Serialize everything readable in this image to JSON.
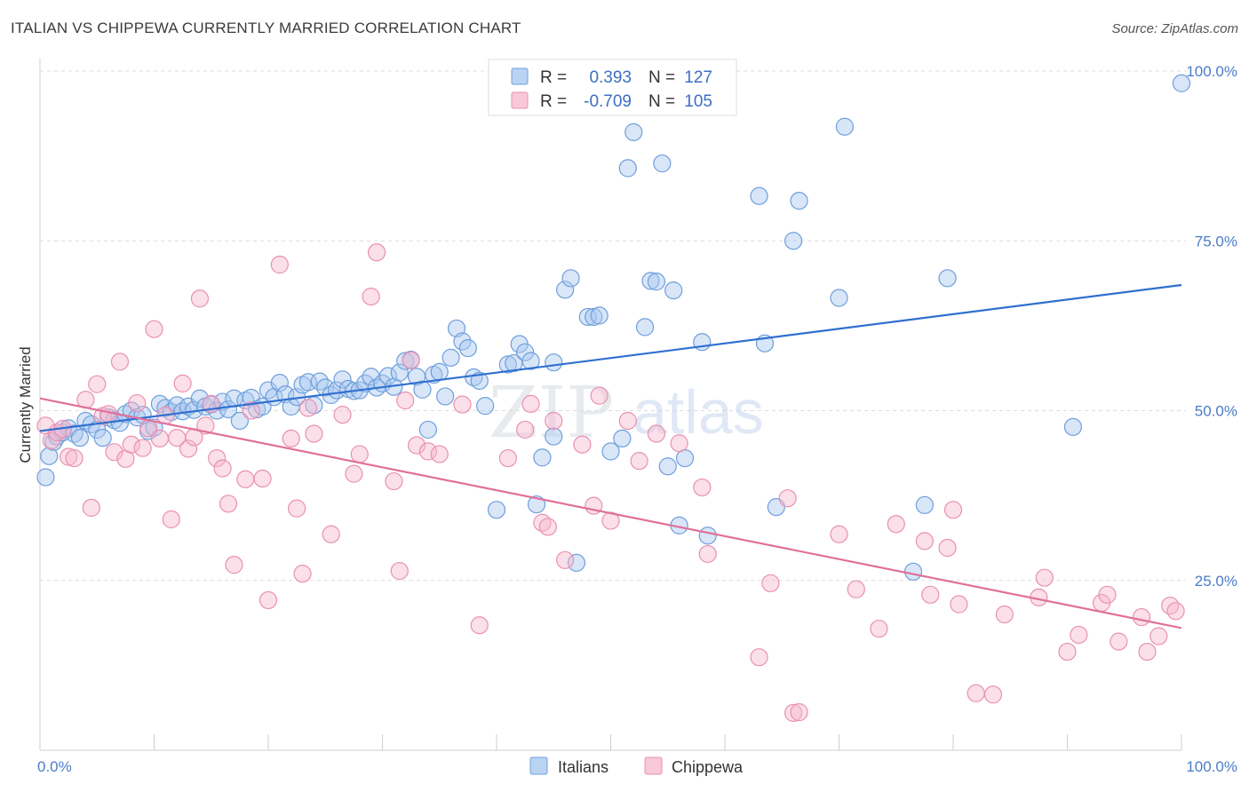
{
  "header": {
    "title": "ITALIAN VS CHIPPEWA CURRENTLY MARRIED CORRELATION CHART",
    "source": "Source: ZipAtlas.com"
  },
  "watermark": {
    "zip": "ZIP",
    "atlas": "atlas"
  },
  "legend": {
    "r_label": "R =",
    "n_label": "N =",
    "rows": [
      {
        "r": "0.393",
        "n": "127"
      },
      {
        "r": "-0.709",
        "n": "105"
      }
    ]
  },
  "bottom_legend": {
    "italians": "Italians",
    "chippewa": "Chippewa"
  },
  "colors": {
    "italians_fill": "#a9c8f0",
    "italians_stroke": "#6f9fdc",
    "italians_line": "#2f6fd0",
    "chippewa_fill": "#f6b9ce",
    "chippewa_stroke": "#e991b0",
    "chippewa_line": "#e0709a",
    "grid": "#dddddd",
    "tick_text": "#4a7cc9"
  },
  "chart_data": {
    "type": "scatter",
    "title": "ITALIAN VS CHIPPEWA CURRENTLY MARRIED CORRELATION CHART",
    "xlabel": "",
    "ylabel": "Currently Married",
    "xlim": [
      0,
      100
    ],
    "ylim": [
      0,
      100
    ],
    "x_tick_labels": [
      "0.0%",
      "100.0%"
    ],
    "y_ticks": [
      25,
      50,
      75,
      100
    ],
    "y_tick_labels": [
      "25.0%",
      "50.0%",
      "75.0%",
      "100.0%"
    ],
    "grid": true,
    "series": [
      {
        "name": "Italians",
        "r": 0.393,
        "n": 127,
        "trend": {
          "x": [
            0,
            100
          ],
          "y": [
            47.0,
            68.5
          ]
        },
        "points": [
          [
            0.5,
            40.2
          ],
          [
            0.8,
            43.3
          ],
          [
            1.2,
            45.4
          ],
          [
            1.5,
            46.2
          ],
          [
            2.0,
            46.8
          ],
          [
            2.5,
            47.4
          ],
          [
            3.0,
            46.6
          ],
          [
            3.5,
            46.0
          ],
          [
            4.0,
            48.5
          ],
          [
            4.5,
            48.0
          ],
          [
            5.0,
            47.2
          ],
          [
            5.5,
            46.0
          ],
          [
            6.0,
            49.0
          ],
          [
            6.5,
            48.6
          ],
          [
            7.0,
            48.2
          ],
          [
            7.5,
            49.5
          ],
          [
            8.0,
            50.0
          ],
          [
            8.5,
            49.0
          ],
          [
            9.0,
            49.4
          ],
          [
            9.5,
            47.0
          ],
          [
            10.0,
            47.5
          ],
          [
            10.5,
            51.0
          ],
          [
            11.0,
            50.4
          ],
          [
            11.5,
            49.8
          ],
          [
            12.0,
            50.8
          ],
          [
            12.5,
            49.9
          ],
          [
            13.0,
            50.6
          ],
          [
            13.5,
            50.1
          ],
          [
            14.0,
            51.8
          ],
          [
            14.5,
            50.6
          ],
          [
            15.0,
            50.9
          ],
          [
            15.5,
            50.0
          ],
          [
            16.0,
            51.3
          ],
          [
            16.5,
            50.2
          ],
          [
            17.0,
            51.8
          ],
          [
            17.5,
            48.5
          ],
          [
            18.0,
            51.5
          ],
          [
            18.5,
            51.9
          ],
          [
            19.0,
            50.2
          ],
          [
            19.5,
            50.6
          ],
          [
            20.0,
            53.0
          ],
          [
            20.5,
            52.0
          ],
          [
            21.0,
            54.1
          ],
          [
            21.5,
            52.4
          ],
          [
            22.0,
            50.6
          ],
          [
            22.5,
            52.0
          ],
          [
            23.0,
            53.8
          ],
          [
            23.5,
            54.2
          ],
          [
            24.0,
            50.8
          ],
          [
            24.5,
            54.3
          ],
          [
            25.0,
            53.4
          ],
          [
            25.5,
            52.3
          ],
          [
            26.0,
            53.0
          ],
          [
            26.5,
            54.6
          ],
          [
            27.0,
            53.2
          ],
          [
            27.5,
            52.9
          ],
          [
            28.0,
            53.0
          ],
          [
            28.5,
            54.0
          ],
          [
            29.0,
            55.0
          ],
          [
            29.5,
            53.4
          ],
          [
            30.0,
            54.0
          ],
          [
            30.5,
            55.1
          ],
          [
            31.0,
            53.5
          ],
          [
            31.5,
            55.6
          ],
          [
            32.0,
            57.3
          ],
          [
            32.5,
            57.5
          ],
          [
            33.0,
            55.0
          ],
          [
            33.5,
            53.1
          ],
          [
            34.0,
            47.2
          ],
          [
            34.5,
            55.3
          ],
          [
            35.0,
            55.7
          ],
          [
            35.5,
            52.1
          ],
          [
            36.0,
            57.8
          ],
          [
            36.5,
            62.1
          ],
          [
            37.0,
            60.2
          ],
          [
            37.5,
            59.2
          ],
          [
            38.0,
            54.9
          ],
          [
            38.5,
            54.4
          ],
          [
            39.0,
            50.7
          ],
          [
            40.0,
            35.4
          ],
          [
            41.0,
            56.8
          ],
          [
            41.5,
            57.0
          ],
          [
            42.0,
            59.8
          ],
          [
            42.5,
            58.6
          ],
          [
            43.0,
            57.3
          ],
          [
            43.5,
            36.2
          ],
          [
            44.0,
            43.1
          ],
          [
            45.0,
            46.2
          ],
          [
            45.0,
            57.1
          ],
          [
            46.0,
            67.8
          ],
          [
            46.5,
            69.5
          ],
          [
            47.0,
            27.6
          ],
          [
            48.0,
            63.8
          ],
          [
            48.5,
            63.8
          ],
          [
            49.0,
            64.0
          ],
          [
            50.0,
            44.0
          ],
          [
            51.0,
            45.9
          ],
          [
            52.0,
            91.0
          ],
          [
            51.5,
            85.7
          ],
          [
            53.0,
            62.3
          ],
          [
            53.5,
            69.1
          ],
          [
            54.0,
            69.0
          ],
          [
            54.5,
            86.4
          ],
          [
            55.0,
            41.8
          ],
          [
            55.5,
            67.7
          ],
          [
            56.0,
            33.1
          ],
          [
            56.5,
            43.0
          ],
          [
            58.0,
            60.1
          ],
          [
            58.5,
            31.6
          ],
          [
            63.0,
            81.6
          ],
          [
            63.5,
            59.9
          ],
          [
            64.5,
            35.8
          ],
          [
            66.0,
            75.0
          ],
          [
            66.5,
            80.9
          ],
          [
            70.0,
            66.6
          ],
          [
            70.5,
            91.8
          ],
          [
            76.5,
            26.3
          ],
          [
            77.5,
            36.1
          ],
          [
            79.5,
            69.5
          ],
          [
            90.5,
            47.6
          ],
          [
            100.0,
            98.2
          ]
        ]
      },
      {
        "name": "Chippewa",
        "r": -0.709,
        "n": 105,
        "trend": {
          "x": [
            0,
            100
          ],
          "y": [
            51.8,
            18.0
          ]
        },
        "points": [
          [
            0.5,
            47.8
          ],
          [
            1.0,
            45.6
          ],
          [
            1.5,
            46.8
          ],
          [
            2.0,
            47.3
          ],
          [
            2.5,
            43.2
          ],
          [
            3.0,
            43.0
          ],
          [
            4.0,
            51.6
          ],
          [
            4.5,
            35.7
          ],
          [
            5.0,
            53.9
          ],
          [
            5.5,
            49.2
          ],
          [
            6.0,
            49.5
          ],
          [
            6.5,
            43.9
          ],
          [
            7.0,
            57.2
          ],
          [
            7.5,
            42.9
          ],
          [
            8.0,
            45.0
          ],
          [
            8.5,
            51.1
          ],
          [
            9.0,
            44.5
          ],
          [
            9.5,
            47.4
          ],
          [
            10.0,
            62.0
          ],
          [
            10.5,
            45.9
          ],
          [
            11.0,
            49.3
          ],
          [
            11.5,
            34.0
          ],
          [
            12.0,
            46.0
          ],
          [
            12.5,
            54.0
          ],
          [
            13.0,
            44.4
          ],
          [
            13.5,
            46.1
          ],
          [
            14.0,
            66.5
          ],
          [
            14.5,
            47.8
          ],
          [
            15.0,
            51.0
          ],
          [
            15.5,
            43.0
          ],
          [
            16.0,
            41.5
          ],
          [
            16.5,
            36.3
          ],
          [
            17.0,
            27.3
          ],
          [
            18.0,
            39.9
          ],
          [
            18.5,
            50.0
          ],
          [
            19.5,
            40.0
          ],
          [
            20.0,
            22.1
          ],
          [
            21.0,
            71.5
          ],
          [
            22.0,
            45.9
          ],
          [
            22.5,
            35.6
          ],
          [
            23.0,
            26.0
          ],
          [
            23.5,
            50.4
          ],
          [
            24.0,
            46.6
          ],
          [
            25.5,
            31.8
          ],
          [
            26.5,
            49.4
          ],
          [
            27.5,
            40.7
          ],
          [
            28.0,
            43.6
          ],
          [
            29.0,
            66.8
          ],
          [
            29.5,
            73.3
          ],
          [
            31.0,
            39.6
          ],
          [
            31.5,
            26.4
          ],
          [
            32.0,
            51.5
          ],
          [
            32.5,
            57.4
          ],
          [
            33.0,
            44.9
          ],
          [
            34.0,
            44.0
          ],
          [
            35.0,
            43.6
          ],
          [
            37.0,
            50.9
          ],
          [
            38.5,
            18.4
          ],
          [
            41.0,
            43.0
          ],
          [
            42.5,
            47.2
          ],
          [
            43.0,
            51.0
          ],
          [
            44.0,
            33.5
          ],
          [
            44.5,
            32.9
          ],
          [
            45.0,
            48.5
          ],
          [
            46.0,
            28.0
          ],
          [
            47.5,
            45.0
          ],
          [
            48.5,
            36.0
          ],
          [
            49.0,
            52.2
          ],
          [
            50.0,
            33.8
          ],
          [
            51.5,
            48.5
          ],
          [
            52.5,
            42.6
          ],
          [
            54.0,
            46.6
          ],
          [
            56.0,
            45.2
          ],
          [
            58.0,
            38.7
          ],
          [
            58.5,
            28.9
          ],
          [
            63.0,
            13.7
          ],
          [
            64.0,
            24.6
          ],
          [
            65.5,
            37.1
          ],
          [
            66.0,
            5.5
          ],
          [
            66.5,
            5.6
          ],
          [
            70.0,
            31.8
          ],
          [
            71.5,
            23.7
          ],
          [
            73.5,
            17.9
          ],
          [
            75.0,
            33.3
          ],
          [
            77.5,
            30.8
          ],
          [
            78.0,
            22.9
          ],
          [
            79.5,
            29.8
          ],
          [
            80.0,
            35.4
          ],
          [
            80.5,
            21.5
          ],
          [
            82.0,
            8.4
          ],
          [
            83.5,
            8.2
          ],
          [
            84.5,
            20.0
          ],
          [
            87.5,
            22.5
          ],
          [
            88.0,
            25.4
          ],
          [
            90.0,
            14.5
          ],
          [
            91.0,
            17.0
          ],
          [
            93.0,
            21.7
          ],
          [
            93.5,
            22.9
          ],
          [
            94.5,
            16.0
          ],
          [
            96.5,
            19.6
          ],
          [
            97.0,
            14.5
          ],
          [
            98.0,
            16.8
          ],
          [
            99.0,
            21.3
          ],
          [
            99.5,
            20.5
          ]
        ]
      }
    ]
  }
}
